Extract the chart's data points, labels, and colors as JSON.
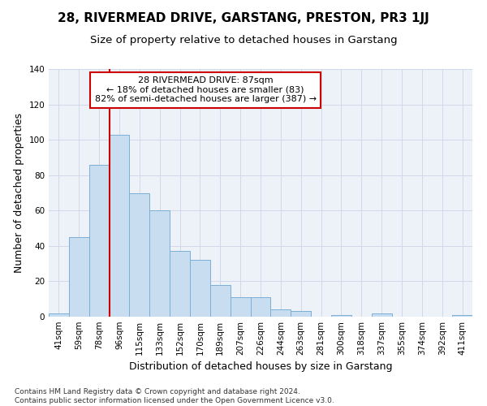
{
  "title": "28, RIVERMEAD DRIVE, GARSTANG, PRESTON, PR3 1JJ",
  "subtitle": "Size of property relative to detached houses in Garstang",
  "xlabel": "Distribution of detached houses by size in Garstang",
  "ylabel": "Number of detached properties",
  "categories": [
    "41sqm",
    "59sqm",
    "78sqm",
    "96sqm",
    "115sqm",
    "133sqm",
    "152sqm",
    "170sqm",
    "189sqm",
    "207sqm",
    "226sqm",
    "244sqm",
    "263sqm",
    "281sqm",
    "300sqm",
    "318sqm",
    "337sqm",
    "355sqm",
    "374sqm",
    "392sqm",
    "411sqm"
  ],
  "values": [
    2,
    45,
    86,
    103,
    70,
    60,
    37,
    32,
    18,
    11,
    11,
    4,
    3,
    0,
    1,
    0,
    2,
    0,
    0,
    0,
    1
  ],
  "bar_color": "#c9ddf0",
  "bar_edge_color": "#7bafd4",
  "annotation_line1": "28 RIVERMEAD DRIVE: 87sqm",
  "annotation_line2": "← 18% of detached houses are smaller (83)",
  "annotation_line3": "82% of semi-detached houses are larger (387) →",
  "annotation_box_color": "#ffffff",
  "annotation_box_edge_color": "#cc0000",
  "vline_color": "#cc0000",
  "vline_x": 2.5,
  "ylim": [
    0,
    140
  ],
  "yticks": [
    0,
    20,
    40,
    60,
    80,
    100,
    120,
    140
  ],
  "grid_color": "#d0d8ea",
  "background_color": "#edf2f8",
  "footer_text": "Contains HM Land Registry data © Crown copyright and database right 2024.\nContains public sector information licensed under the Open Government Licence v3.0.",
  "title_fontsize": 11,
  "subtitle_fontsize": 9.5,
  "axis_label_fontsize": 9,
  "tick_fontsize": 7.5,
  "annotation_fontsize": 8,
  "footer_fontsize": 6.5
}
